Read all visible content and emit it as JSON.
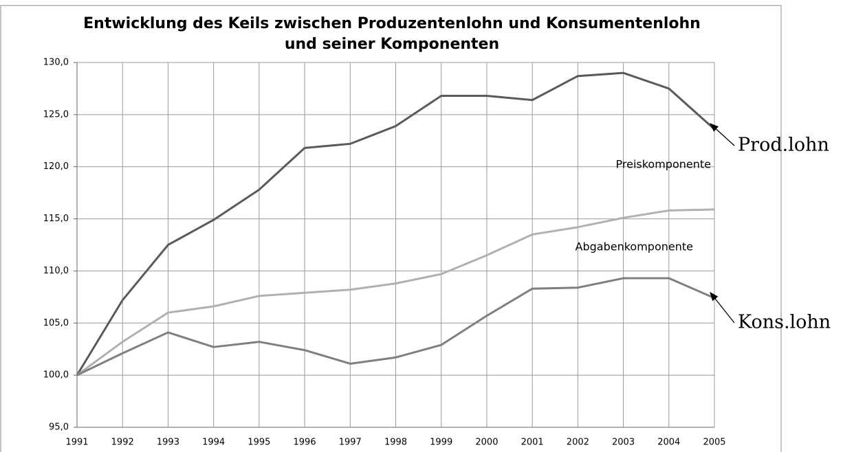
{
  "chart_data": {
    "type": "line",
    "title": "Entwicklung des Keils zwischen Produzentenlohn und Konsumentenlohn und seiner Komponenten",
    "categories": [
      "1991",
      "1992",
      "1993",
      "1994",
      "1995",
      "1996",
      "1997",
      "1998",
      "1999",
      "2000",
      "2001",
      "2002",
      "2003",
      "2004",
      "2005"
    ],
    "series": [
      {
        "name": "Prod.lohn",
        "color": "#5a5a5a",
        "values": [
          100,
          107.2,
          112.5,
          114.9,
          117.8,
          121.8,
          122.2,
          123.9,
          126.8,
          126.8,
          126.4,
          128.7,
          129.0,
          127.5,
          123.6
        ]
      },
      {
        "color": "#b0b0b0",
        "values": [
          100,
          103.2,
          106.0,
          106.6,
          107.6,
          107.9,
          108.2,
          108.8,
          109.7,
          111.5,
          113.5,
          114.2,
          115.1,
          115.8,
          115.9
        ]
      },
      {
        "name": "Kons.lohn",
        "color": "#7f7f7f",
        "values": [
          100,
          102.1,
          104.1,
          102.7,
          103.2,
          102.4,
          101.1,
          101.7,
          102.9,
          105.7,
          108.3,
          108.4,
          109.3,
          109.3,
          107.4
        ]
      }
    ],
    "annotations": [
      "Preiskomponente",
      "Abgabenkomponente"
    ],
    "ylim": [
      95,
      130
    ],
    "yticks": [
      {
        "value": 95,
        "label": "95,0"
      },
      {
        "value": 100,
        "label": "100,0"
      },
      {
        "value": 105,
        "label": "105,0"
      },
      {
        "value": 110,
        "label": "110,0"
      },
      {
        "value": 115,
        "label": "115,0"
      },
      {
        "value": 120,
        "label": "120,0"
      },
      {
        "value": 125,
        "label": "125,0"
      },
      {
        "value": 130,
        "label": "130,0"
      }
    ],
    "grid": true
  }
}
